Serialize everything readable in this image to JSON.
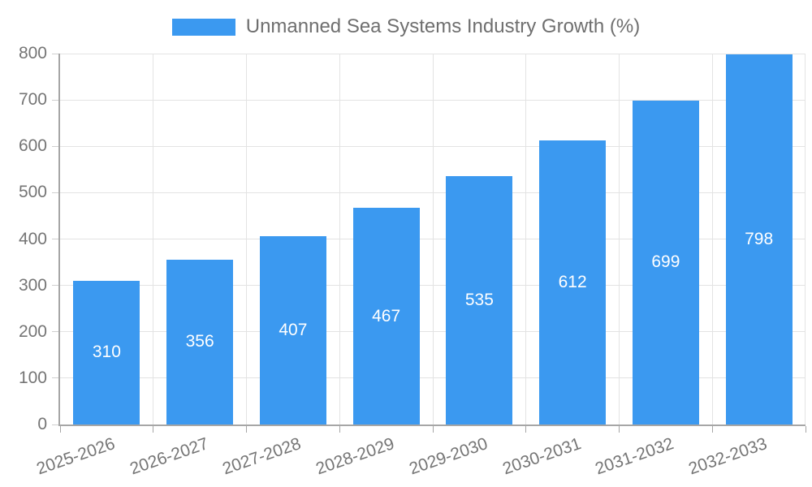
{
  "chart_data": {
    "type": "bar",
    "title": "Unmanned Sea Systems Industry Growth (%)",
    "categories": [
      "2025-2026",
      "2026-2027",
      "2027-2028",
      "2028-2029",
      "2029-2030",
      "2030-2031",
      "2031-2032",
      "2032-2033"
    ],
    "values": [
      310,
      356,
      407,
      467,
      535,
      612,
      699,
      798
    ],
    "xlabel": "",
    "ylabel": "",
    "ylim": [
      0,
      800
    ],
    "ytick_step": 100,
    "ytick_labels": [
      "0",
      "100",
      "200",
      "300",
      "400",
      "500",
      "600",
      "700",
      "800"
    ],
    "grid": true,
    "legend_position": "top-center",
    "value_label_position": "inside-middle",
    "colors": {
      "bar": "#3B99F0",
      "axis_line": "#A6A6A6",
      "gridline": "#E3E3E3",
      "tick": "#CFCFCF",
      "title_text": "#6F6F6F",
      "axis_text": "#757575",
      "value_text": "#FFFFFF",
      "background": "#FFFFFF"
    }
  }
}
